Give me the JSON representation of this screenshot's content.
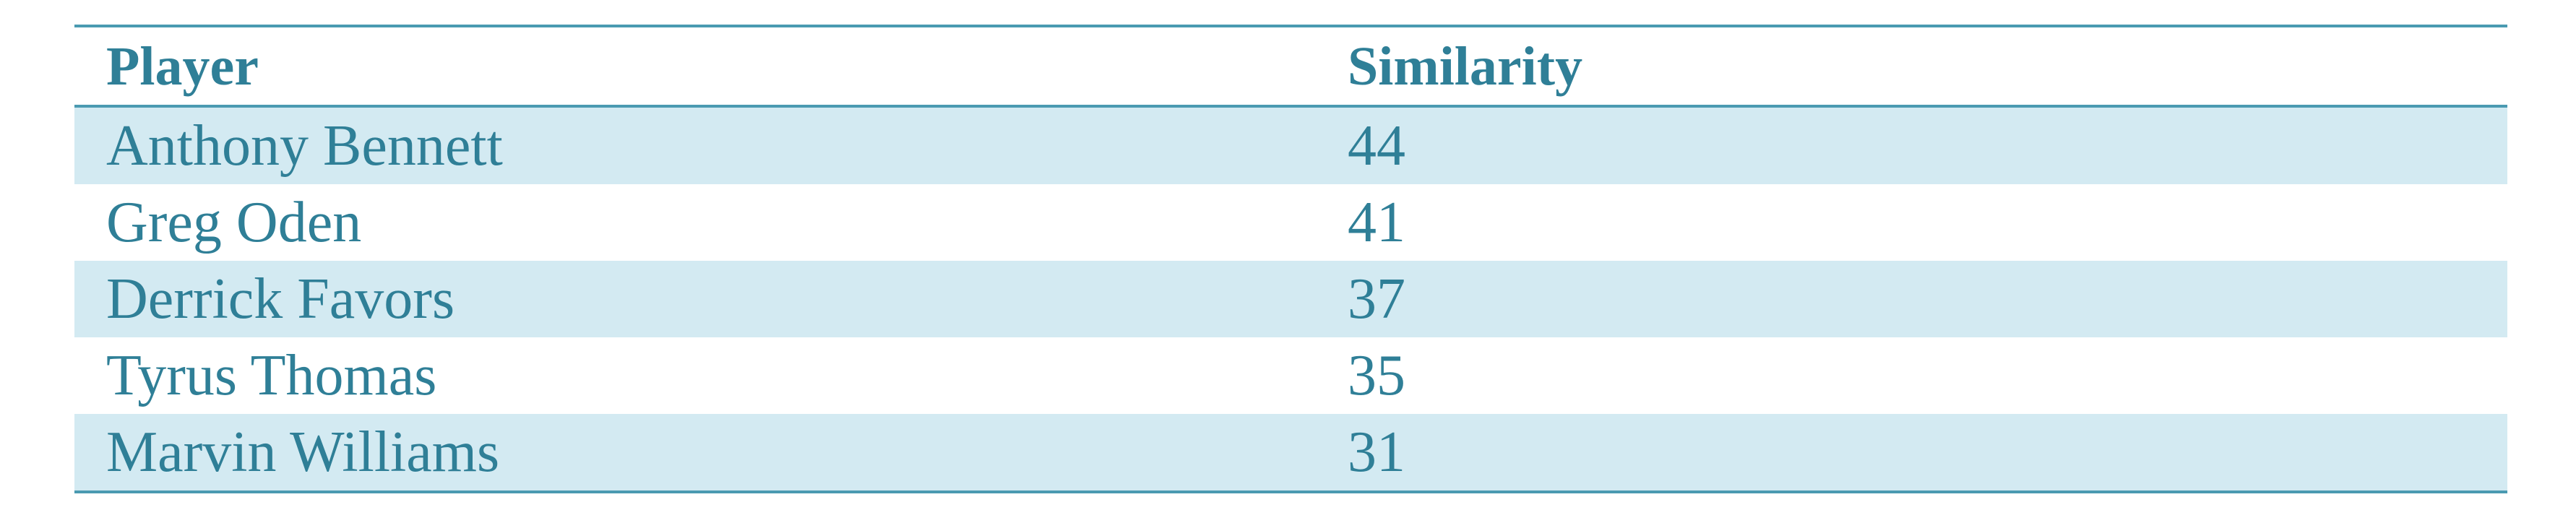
{
  "table": {
    "headers": {
      "player": "Player",
      "similarity": "Similarity"
    },
    "rows": [
      {
        "player": "Anthony Bennett",
        "similarity": "44"
      },
      {
        "player": "Greg Oden",
        "similarity": "41"
      },
      {
        "player": "Derrick Favors",
        "similarity": "37"
      },
      {
        "player": "Tyrus Thomas",
        "similarity": "35"
      },
      {
        "player": "Marvin Williams",
        "similarity": "31"
      }
    ],
    "colors": {
      "text": "#2f7f97",
      "rule": "#4a9ab1",
      "band": "#d3eaf2"
    }
  }
}
